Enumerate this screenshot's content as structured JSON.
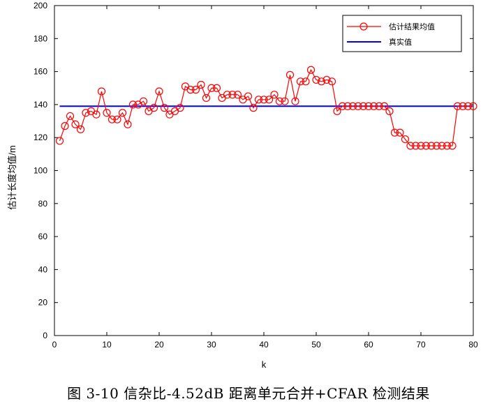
{
  "caption": "图 3-10  信杂比-4.52dB  距离单元合并+CFAR 检测结果",
  "chart_data": {
    "type": "line",
    "xlabel": "k",
    "ylabel": "估计长度均值/m",
    "xlim": [
      0,
      80
    ],
    "ylim": [
      0,
      200
    ],
    "xticks": [
      0,
      10,
      20,
      30,
      40,
      50,
      60,
      70,
      80
    ],
    "yticks": [
      0,
      20,
      40,
      60,
      80,
      100,
      120,
      140,
      160,
      180,
      200
    ],
    "grid": false,
    "legend_position": "top-right",
    "series": [
      {
        "name": "估计结果均值",
        "color": "#ff0000",
        "marker": "circle",
        "x": [
          1,
          2,
          3,
          4,
          5,
          6,
          7,
          8,
          9,
          10,
          11,
          12,
          13,
          14,
          15,
          16,
          17,
          18,
          19,
          20,
          21,
          22,
          23,
          24,
          25,
          26,
          27,
          28,
          29,
          30,
          31,
          32,
          33,
          34,
          35,
          36,
          37,
          38,
          39,
          40,
          41,
          42,
          43,
          44,
          45,
          46,
          47,
          48,
          49,
          50,
          51,
          52,
          53,
          54,
          55,
          56,
          57,
          58,
          59,
          60,
          61,
          62,
          63,
          64,
          65,
          66,
          67,
          68,
          69,
          70,
          71,
          72,
          73,
          74,
          75,
          76,
          77,
          78,
          79,
          80
        ],
        "y": [
          118,
          127,
          133,
          128,
          125,
          135,
          136,
          134,
          148,
          135,
          131,
          131,
          135,
          128,
          140,
          140,
          142,
          136,
          138,
          148,
          138,
          134,
          136,
          138,
          151,
          149,
          149,
          152,
          144,
          150,
          150,
          144,
          146,
          146,
          146,
          143,
          145,
          138,
          143,
          143,
          143,
          146,
          142,
          142,
          158,
          142,
          154,
          154,
          161,
          155,
          154,
          155,
          154,
          136,
          139,
          139,
          139,
          139,
          139,
          139,
          139,
          139,
          139,
          136,
          123,
          123,
          119,
          115,
          115,
          115,
          115,
          115,
          115,
          115,
          115,
          115,
          139,
          139,
          139,
          139
        ]
      },
      {
        "name": "真实值",
        "color": "#0000ff",
        "marker": "none",
        "x": [
          1,
          80
        ],
        "y": [
          139,
          139
        ]
      }
    ]
  }
}
